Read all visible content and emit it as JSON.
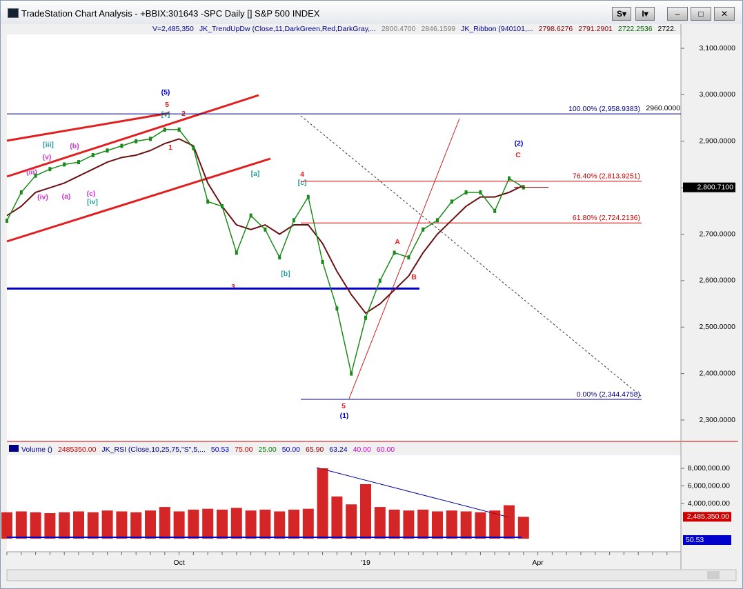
{
  "window": {
    "title": "TradeStation Chart Analysis - +BBIX:301643 -SPC Daily [] S&P 500 INDEX",
    "buttons": [
      "S",
      "I"
    ]
  },
  "price_header": [
    "V=2,485,350",
    "JK_TrendUpDw (Close,11,DarkGreen,Red,DarkGray,...",
    "2800.4700",
    "2846.1599",
    "JK_Ribbon (940101,...",
    "2798.6276",
    "2791.2901",
    "2722.2536",
    "2722."
  ],
  "volume_header": [
    "Volume ()",
    "2485350.00",
    "JK_RSI (Close,10,25,75,\"S\",5,...",
    "50.53",
    "75.00",
    "25.00",
    "50.00",
    "65.90",
    "63.24",
    "40.00",
    "60.00"
  ],
  "price_panel": {
    "ylim": [
      2254,
      3152
    ],
    "yticks": [
      {
        "value": 2300,
        "label": "2,300.0000"
      },
      {
        "value": 2400,
        "label": "2,400.0000"
      },
      {
        "value": 2500,
        "label": "2,500.0000"
      },
      {
        "value": 2600,
        "label": "2,600.0000"
      },
      {
        "value": 2700,
        "label": "2,700.0000"
      },
      {
        "value": 2800,
        "label": "2,800.0000"
      },
      {
        "value": 2900,
        "label": "2,900.0000"
      },
      {
        "value": 3000,
        "label": "3,000.0000"
      },
      {
        "value": 3100,
        "label": "3,100.0000"
      }
    ],
    "categories": [
      null,
      null,
      null,
      null,
      null,
      null,
      null,
      null,
      null,
      null,
      null,
      null,
      "Oct",
      null,
      null,
      null,
      null,
      null,
      null,
      null,
      null,
      null,
      null,
      null,
      null,
      "'19",
      null,
      null,
      null,
      null,
      null,
      null,
      null,
      null,
      null,
      null,
      null,
      "Apr",
      null,
      null,
      null,
      null,
      null,
      null,
      null,
      null,
      null
    ],
    "close": {
      "color": "#1a8a1a",
      "values": [
        2729,
        2790,
        2826,
        2840,
        2850,
        2855,
        2870,
        2880,
        2890,
        2900,
        2905,
        2925,
        2925,
        2885,
        2770,
        2760,
        2660,
        2740,
        2710,
        2650,
        2730,
        2780,
        2640,
        2540,
        2400,
        2520,
        2600,
        2660,
        2650,
        2710,
        2730,
        2770,
        2790,
        2790,
        2750,
        2820,
        2800.71
      ]
    },
    "average": {
      "color": "#6b1010",
      "values": [
        2740,
        2760,
        2790,
        2800,
        2810,
        2825,
        2840,
        2855,
        2865,
        2870,
        2880,
        2895,
        2905,
        2890,
        2810,
        2760,
        2720,
        2710,
        2720,
        2700,
        2720,
        2720,
        2680,
        2620,
        2570,
        2530,
        2550,
        2580,
        2610,
        2660,
        2700,
        2730,
        2760,
        2780,
        2780,
        2790,
        2805
      ]
    },
    "last_price": {
      "value": 2800.71,
      "label": "2,800.7100"
    },
    "support": {
      "value": 2583,
      "color": "#0000cc"
    },
    "fib": [
      {
        "label": "100.00% (2,958.9383)",
        "value": 2958.9383,
        "color": "#000080"
      },
      {
        "label": "76.40% (2,813.9251)",
        "value": 2813.9251,
        "color": "#cc0000"
      },
      {
        "label": "61.80% (2,724.2136)",
        "value": 2724.2136,
        "color": "#cc0000"
      },
      {
        "label": "0.00% (2,344.4758)",
        "value": 2344.4758,
        "color": "#000080"
      }
    ],
    "fib_box": {
      "value": 2960,
      "label": "2960.0000"
    },
    "wave_labels": [
      "(5)",
      "5",
      "[v]",
      "2",
      "1",
      "[iii]",
      "(b)",
      "(v)",
      "(iii)",
      "(iv)",
      "(a)",
      "(c)",
      "[iv]",
      "[a]",
      "4",
      "[c]",
      "3",
      "[b]",
      "5",
      "(1)",
      "A",
      "B",
      "(2)",
      "C"
    ]
  },
  "volume_panel": {
    "ylim": [
      0,
      9490000
    ],
    "yticks": [
      {
        "value": 8000000,
        "label": "8,000,000.00"
      },
      {
        "value": 6000000,
        "label": "6,000,000.00"
      },
      {
        "value": 4000000,
        "label": "4,000,000.00"
      }
    ],
    "color": "#cc0000",
    "values": [
      3000000,
      3100000,
      3000000,
      2900000,
      3000000,
      3100000,
      3000000,
      3200000,
      3100000,
      3000000,
      3200000,
      3600000,
      3100000,
      3300000,
      3400000,
      3300000,
      3500000,
      3200000,
      3300000,
      3100000,
      3300000,
      3400000,
      8000000,
      4800000,
      3900000,
      6200000,
      3600000,
      3300000,
      3200000,
      3300000,
      3100000,
      3200000,
      3100000,
      3000000,
      3200000,
      3800000,
      2485350
    ],
    "last_value": {
      "value": 2485350,
      "label": "2,485,350.00"
    },
    "rsi_label": "50.53"
  }
}
